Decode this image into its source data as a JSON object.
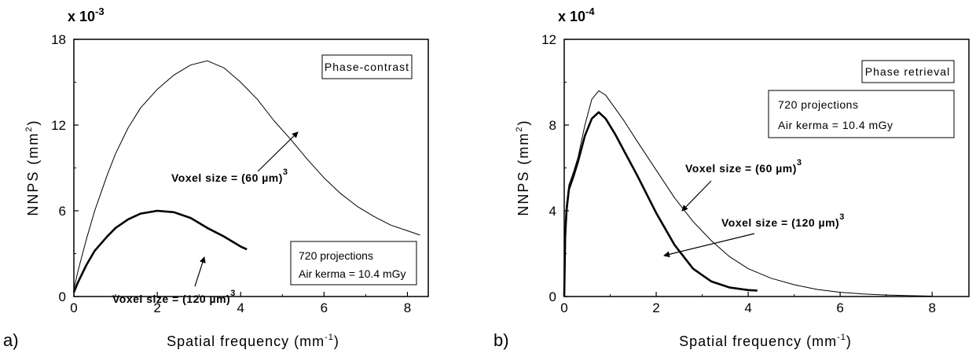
{
  "chart_data": [
    {
      "type": "line",
      "panel_label": "a)",
      "multiplier": "x 10",
      "multiplier_exp": "-3",
      "xlabel": "Spatial frequency (mm",
      "xlabel_sup": "-1",
      "xlabel_end": ")",
      "ylabel": "NNPS (mm",
      "ylabel_sup": "2",
      "ylabel_end": ")",
      "xlim": [
        0,
        8.5
      ],
      "ylim": [
        0,
        18
      ],
      "xticks": [
        "0",
        "2",
        "4",
        "6",
        "8"
      ],
      "yticks": [
        "0",
        "6",
        "12",
        "18"
      ],
      "title_box": "Phase-contrast",
      "info_box": [
        "720 projections",
        "Air kerma = 10.4 mGy"
      ],
      "annotations": [
        {
          "text": "Voxel size = (60 µm)",
          "sup": "3"
        },
        {
          "text": "Voxel size = (120 µm)",
          "sup": "3"
        }
      ],
      "series": [
        {
          "x": [
            0,
            0.1,
            0.3,
            0.5,
            0.8,
            1.0,
            1.3,
            1.6,
            2.0,
            2.4,
            2.8,
            3.2,
            3.6,
            4.0,
            4.4,
            4.8,
            5.2,
            5.6,
            6.0,
            6.4,
            6.8,
            7.2,
            7.6,
            8.0,
            8.3
          ],
          "y": [
            0.5,
            1.8,
            4.0,
            6.0,
            8.5,
            10.0,
            11.8,
            13.2,
            14.5,
            15.5,
            16.2,
            16.5,
            16.0,
            15.0,
            13.8,
            12.3,
            11.0,
            9.6,
            8.3,
            7.2,
            6.3,
            5.6,
            5.0,
            4.6,
            4.3
          ],
          "stroke": "thin"
        },
        {
          "x": [
            0,
            0.1,
            0.3,
            0.5,
            0.8,
            1.0,
            1.3,
            1.6,
            2.0,
            2.4,
            2.8,
            3.2,
            3.6,
            4.0,
            4.15
          ],
          "y": [
            0.3,
            1.0,
            2.2,
            3.2,
            4.2,
            4.8,
            5.4,
            5.8,
            6.0,
            5.9,
            5.5,
            4.8,
            4.2,
            3.5,
            3.3
          ],
          "stroke": "thick"
        }
      ]
    },
    {
      "type": "line",
      "panel_label": "b)",
      "multiplier": "x 10",
      "multiplier_exp": "-4",
      "xlabel": "Spatial frequency (mm",
      "xlabel_sup": "-1",
      "xlabel_end": ")",
      "ylabel": "NNPS (mm",
      "ylabel_sup": "2",
      "ylabel_end": ")",
      "xlim": [
        0,
        8.8
      ],
      "ylim": [
        0,
        12
      ],
      "xticks": [
        "0",
        "2",
        "4",
        "6",
        "8"
      ],
      "yticks": [
        "0",
        "4",
        "8",
        "12"
      ],
      "title_box": "Phase retrieval",
      "info_box": [
        "720 projections",
        "Air kerma = 10.4 mGy"
      ],
      "annotations": [
        {
          "text": "Voxel size = (60 µm)",
          "sup": "3"
        },
        {
          "text": "Voxel size = (120 µm)",
          "sup": "3"
        }
      ],
      "series": [
        {
          "x": [
            0,
            0.02,
            0.05,
            0.1,
            0.2,
            0.3,
            0.45,
            0.6,
            0.75,
            0.9,
            1.1,
            1.3,
            1.6,
            2.0,
            2.4,
            2.8,
            3.2,
            3.6,
            4.0,
            4.5,
            5.0,
            5.5,
            6.0,
            6.5,
            7.0,
            7.5,
            8.0
          ],
          "y": [
            0,
            3.0,
            4.3,
            5.2,
            5.8,
            6.5,
            8.0,
            9.2,
            9.6,
            9.4,
            8.8,
            8.2,
            7.2,
            5.9,
            4.6,
            3.5,
            2.6,
            1.85,
            1.3,
            0.85,
            0.55,
            0.33,
            0.2,
            0.12,
            0.07,
            0.04,
            0.02
          ],
          "stroke": "thin"
        },
        {
          "x": [
            0,
            0.02,
            0.05,
            0.1,
            0.2,
            0.3,
            0.45,
            0.6,
            0.75,
            0.9,
            1.1,
            1.3,
            1.6,
            2.0,
            2.4,
            2.8,
            3.2,
            3.6,
            4.0,
            4.2
          ],
          "y": [
            0,
            2.8,
            4.0,
            5.0,
            5.6,
            6.3,
            7.5,
            8.3,
            8.6,
            8.3,
            7.6,
            6.8,
            5.6,
            3.9,
            2.4,
            1.3,
            0.7,
            0.42,
            0.3,
            0.28
          ],
          "stroke": "thick"
        }
      ]
    }
  ]
}
